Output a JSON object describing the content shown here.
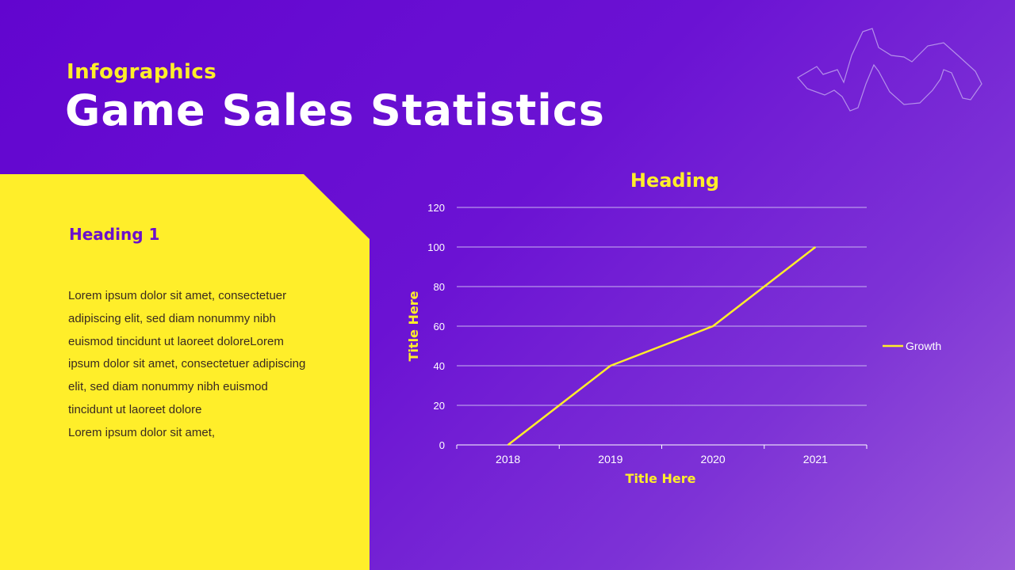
{
  "header": {
    "eyebrow": "Infographics",
    "title": "Game Sales Statistics"
  },
  "panel": {
    "heading": "Heading 1",
    "paragraphs": [
      "Lorem ipsum dolor sit amet, consectetuer adipiscing elit, sed diam nonummy nibh euismod tincidunt ut laoreet doloreLorem ipsum dolor sit amet, consectetuer adipiscing elit, sed diam nonummy nibh euismod tincidunt ut laoreet dolore",
      "Lorem ipsum dolor sit amet,"
    ]
  },
  "colors": {
    "background": "#6205cf",
    "accent": "#ffee2a",
    "panel_heading": "#6a10cc",
    "grid": "#c9b4f0",
    "white": "#ffffff"
  },
  "chart_data": {
    "type": "line",
    "title": "Heading",
    "xlabel": "Title Here",
    "ylabel": "Title Here",
    "categories": [
      "2018",
      "2019",
      "2020",
      "2021"
    ],
    "series": [
      {
        "name": "Growth",
        "values": [
          0,
          40,
          60,
          100
        ]
      }
    ],
    "ylim": [
      0,
      120
    ],
    "yticks": [
      0,
      20,
      40,
      60,
      80,
      100,
      120
    ],
    "grid": true,
    "legend": "right"
  }
}
